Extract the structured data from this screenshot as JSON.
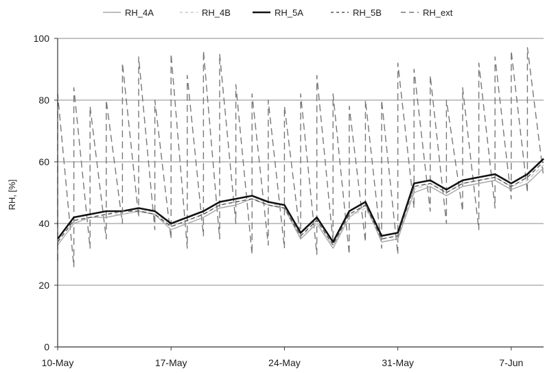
{
  "chart_data": {
    "type": "line",
    "title": "",
    "xlabel": "",
    "ylabel": "RH, [%]",
    "ylim": [
      0,
      100
    ],
    "xlim": [
      "2011-05-10",
      "2011-06-09"
    ],
    "y_ticks": [
      0,
      20,
      40,
      60,
      80,
      100
    ],
    "x_ticks": [
      {
        "date": "2011-05-10",
        "label": "10-May"
      },
      {
        "date": "2011-05-17",
        "label": "17-May"
      },
      {
        "date": "2011-05-24",
        "label": "24-May"
      },
      {
        "date": "2011-05-31",
        "label": "31-May"
      },
      {
        "date": "2011-06-07",
        "label": "7-Jun"
      }
    ],
    "grid": {
      "horizontal": true,
      "vertical": false
    },
    "legend_position": "top",
    "series": [
      {
        "name": "RH_4A",
        "color": "#a6a6a6",
        "dash": "solid",
        "x": [
          "2011-05-10",
          "2011-05-11",
          "2011-05-12",
          "2011-05-13",
          "2011-05-14",
          "2011-05-15",
          "2011-05-16",
          "2011-05-17",
          "2011-05-18",
          "2011-05-19",
          "2011-05-20",
          "2011-05-21",
          "2011-05-22",
          "2011-05-23",
          "2011-05-24",
          "2011-05-25",
          "2011-05-26",
          "2011-05-27",
          "2011-05-28",
          "2011-05-29",
          "2011-05-30",
          "2011-05-31",
          "2011-06-01",
          "2011-06-02",
          "2011-06-03",
          "2011-06-04",
          "2011-06-05",
          "2011-06-06",
          "2011-06-07",
          "2011-06-08",
          "2011-06-09"
        ],
        "values": [
          33,
          40,
          42,
          42,
          43,
          44,
          43,
          38,
          40,
          42,
          45,
          46,
          48,
          46,
          45,
          35,
          40,
          32,
          42,
          46,
          34,
          35,
          50,
          52,
          49,
          52,
          53,
          54,
          51,
          53,
          58
        ]
      },
      {
        "name": "RH_4B",
        "color": "#c8c8c8",
        "dash": "dashed",
        "x": [
          "2011-05-10",
          "2011-05-11",
          "2011-05-12",
          "2011-05-13",
          "2011-05-14",
          "2011-05-15",
          "2011-05-16",
          "2011-05-17",
          "2011-05-18",
          "2011-05-19",
          "2011-05-20",
          "2011-05-21",
          "2011-05-22",
          "2011-05-23",
          "2011-05-24",
          "2011-05-25",
          "2011-05-26",
          "2011-05-27",
          "2011-05-28",
          "2011-05-29",
          "2011-05-30",
          "2011-05-31",
          "2011-06-01",
          "2011-06-02",
          "2011-06-03",
          "2011-06-04",
          "2011-06-05",
          "2011-06-06",
          "2011-06-07",
          "2011-06-08",
          "2011-06-09"
        ],
        "values": [
          34,
          41,
          42,
          43,
          43,
          44,
          44,
          39,
          41,
          43,
          46,
          47,
          48,
          47,
          45,
          36,
          40,
          33,
          42,
          45,
          35,
          36,
          51,
          53,
          50,
          53,
          54,
          55,
          52,
          54,
          59
        ]
      },
      {
        "name": "RH_5A",
        "color": "#111111",
        "dash": "solid",
        "x": [
          "2011-05-10",
          "2011-05-11",
          "2011-05-12",
          "2011-05-13",
          "2011-05-14",
          "2011-05-15",
          "2011-05-16",
          "2011-05-17",
          "2011-05-18",
          "2011-05-19",
          "2011-05-20",
          "2011-05-21",
          "2011-05-22",
          "2011-05-23",
          "2011-05-24",
          "2011-05-25",
          "2011-05-26",
          "2011-05-27",
          "2011-05-28",
          "2011-05-29",
          "2011-05-30",
          "2011-05-31",
          "2011-06-01",
          "2011-06-02",
          "2011-06-03",
          "2011-06-04",
          "2011-06-05",
          "2011-06-06",
          "2011-06-07",
          "2011-06-08",
          "2011-06-09"
        ],
        "values": [
          35,
          42,
          43,
          44,
          44,
          45,
          44,
          40,
          42,
          44,
          47,
          48,
          49,
          47,
          46,
          37,
          42,
          34,
          44,
          47,
          36,
          37,
          53,
          54,
          51,
          54,
          55,
          56,
          53,
          56,
          61
        ]
      },
      {
        "name": "RH_5B",
        "color": "#555555",
        "dash": "dashed",
        "x": [
          "2011-05-10",
          "2011-05-11",
          "2011-05-12",
          "2011-05-13",
          "2011-05-14",
          "2011-05-15",
          "2011-05-16",
          "2011-05-17",
          "2011-05-18",
          "2011-05-19",
          "2011-05-20",
          "2011-05-21",
          "2011-05-22",
          "2011-05-23",
          "2011-05-24",
          "2011-05-25",
          "2011-05-26",
          "2011-05-27",
          "2011-05-28",
          "2011-05-29",
          "2011-05-30",
          "2011-05-31",
          "2011-06-01",
          "2011-06-02",
          "2011-06-03",
          "2011-06-04",
          "2011-06-05",
          "2011-06-06",
          "2011-06-07",
          "2011-06-08",
          "2011-06-09"
        ],
        "values": [
          34,
          41,
          42,
          43,
          44,
          44,
          43,
          39,
          41,
          43,
          46,
          47,
          48,
          46,
          45,
          36,
          41,
          33,
          43,
          46,
          35,
          36,
          52,
          53,
          50,
          53,
          54,
          55,
          52,
          55,
          60
        ]
      },
      {
        "name": "RH_ext",
        "color": "#777777",
        "dash": "long-dash",
        "x": [
          "2011-05-10",
          "2011-05-10",
          "2011-05-11",
          "2011-05-11",
          "2011-05-12",
          "2011-05-12",
          "2011-05-13",
          "2011-05-13",
          "2011-05-14",
          "2011-05-14",
          "2011-05-15",
          "2011-05-15",
          "2011-05-16",
          "2011-05-16",
          "2011-05-17",
          "2011-05-17",
          "2011-05-18",
          "2011-05-18",
          "2011-05-19",
          "2011-05-19",
          "2011-05-20",
          "2011-05-20",
          "2011-05-21",
          "2011-05-21",
          "2011-05-22",
          "2011-05-22",
          "2011-05-23",
          "2011-05-23",
          "2011-05-24",
          "2011-05-24",
          "2011-05-25",
          "2011-05-25",
          "2011-05-26",
          "2011-05-26",
          "2011-05-27",
          "2011-05-27",
          "2011-05-28",
          "2011-05-28",
          "2011-05-29",
          "2011-05-29",
          "2011-05-30",
          "2011-05-30",
          "2011-05-31",
          "2011-05-31",
          "2011-06-01",
          "2011-06-01",
          "2011-06-02",
          "2011-06-02",
          "2011-06-03",
          "2011-06-03",
          "2011-06-04",
          "2011-06-04",
          "2011-06-05",
          "2011-06-05",
          "2011-06-06",
          "2011-06-06",
          "2011-06-07",
          "2011-06-07",
          "2011-06-08",
          "2011-06-08",
          "2011-06-09"
        ],
        "values": [
          28,
          82,
          26,
          84,
          32,
          78,
          35,
          80,
          40,
          92,
          42,
          94,
          38,
          80,
          35,
          95,
          32,
          88,
          36,
          96,
          35,
          95,
          40,
          85,
          30,
          82,
          33,
          80,
          32,
          78,
          35,
          82,
          30,
          88,
          34,
          82,
          30,
          78,
          34,
          80,
          32,
          80,
          30,
          92,
          45,
          90,
          44,
          88,
          40,
          80,
          44,
          84,
          38,
          92,
          45,
          94,
          48,
          96,
          50,
          97,
          55
        ]
      }
    ]
  }
}
